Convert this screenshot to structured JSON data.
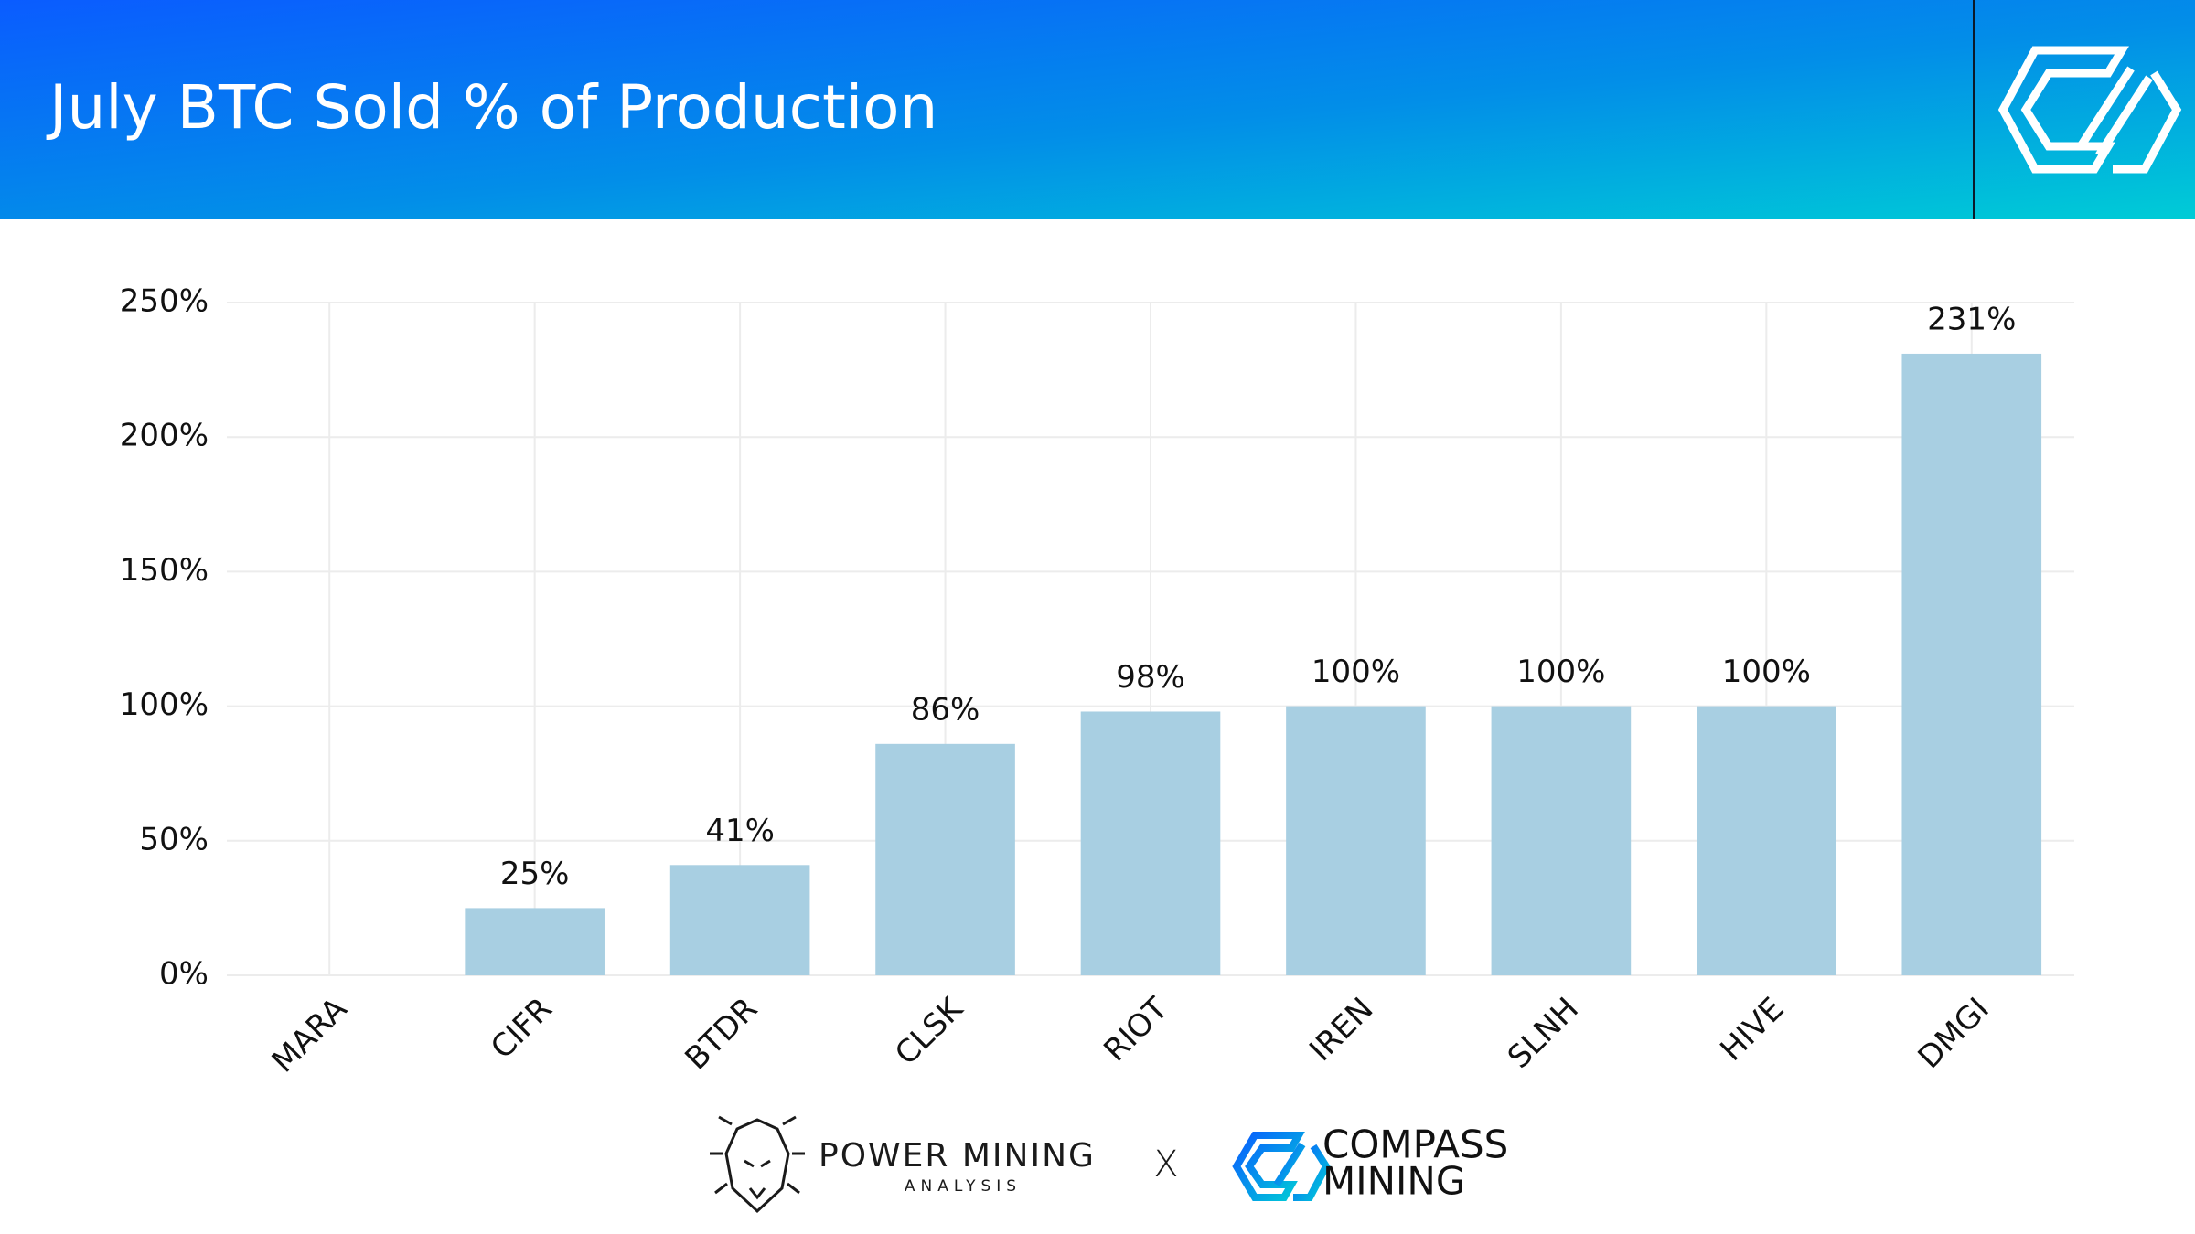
{
  "chart_data": {
    "type": "bar",
    "title": "July BTC Sold % of Production",
    "categories": [
      "MARA",
      "CIFR",
      "BTDR",
      "CLSK",
      "RIOT",
      "IREN",
      "SLNH",
      "HIVE",
      "DMGI"
    ],
    "values": [
      null,
      25,
      41,
      86,
      98,
      100,
      100,
      100,
      231
    ],
    "value_labels": [
      null,
      "25%",
      "41%",
      "86%",
      "98%",
      "100%",
      "100%",
      "100%",
      "231%"
    ],
    "color": "#a8cfe2",
    "ylim": [
      0,
      250
    ],
    "yticks": [
      {
        "value": 0,
        "label": "0%"
      },
      {
        "value": 50,
        "label": "50%"
      },
      {
        "value": 100,
        "label": "100%"
      },
      {
        "value": 150,
        "label": "150%"
      },
      {
        "value": 200,
        "label": "200%"
      },
      {
        "value": 250,
        "label": "250%"
      }
    ],
    "grid": true
  },
  "footer": {
    "left": {
      "title": "POWER MINING",
      "subtitle": "ANALYSIS"
    },
    "separator": "X",
    "right": {
      "line1": "COMPASS",
      "line2": "MINING"
    }
  }
}
